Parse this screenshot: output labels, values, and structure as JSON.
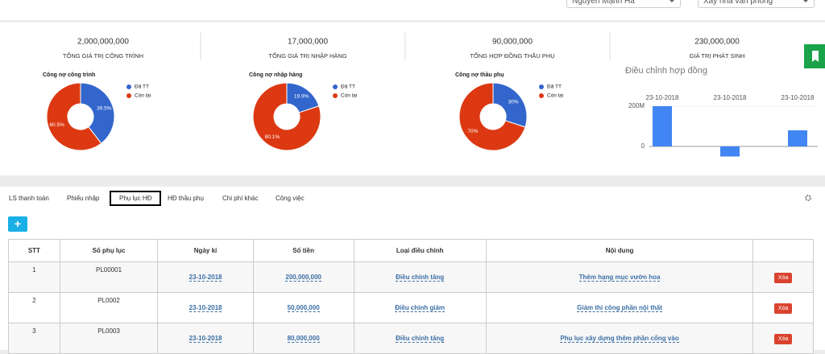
{
  "header": {
    "user_select": "Nguyễn Mạnh Hà",
    "project_select": "Xây nhà văn phòng"
  },
  "stats": [
    {
      "value": "2,000,000,000",
      "label": "TỔNG GIÁ TRỊ CÔNG TRÌNH"
    },
    {
      "value": "17,000,000",
      "label": "TỔNG GIÁ TRỊ NHẬP HÀNG"
    },
    {
      "value": "90,000,000",
      "label": "TỔNG HỢP ĐỒNG THẦU PHỤ"
    },
    {
      "value": "230,000,000",
      "label": "GIÁ TRỊ PHÁT SINH"
    }
  ],
  "chart_data": [
    {
      "type": "pie",
      "title": "Công nợ công trình",
      "categories": [
        "Đã TT",
        "Còn lại"
      ],
      "values": [
        39.5,
        60.5
      ],
      "value_labels": [
        "39.5%",
        "60.5%"
      ],
      "colors": [
        "#3366cc",
        "#dc3912"
      ]
    },
    {
      "type": "pie",
      "title": "Công nợ nhập hàng",
      "categories": [
        "Đã TT",
        "Còn lại"
      ],
      "values": [
        19.9,
        80.1
      ],
      "value_labels": [
        "19.9%",
        "80.1%"
      ],
      "colors": [
        "#3366cc",
        "#dc3912"
      ]
    },
    {
      "type": "pie",
      "title": "Công nợ thầu phụ",
      "categories": [
        "Đã TT",
        "Còn lại"
      ],
      "values": [
        30,
        70
      ],
      "value_labels": [
        "30%",
        "70%"
      ],
      "colors": [
        "#3366cc",
        "#dc3912"
      ]
    },
    {
      "type": "bar",
      "title": "Điều chỉnh hợp đồng",
      "categories": [
        "23-10-2018",
        "23-10-2018",
        "23-10-2018"
      ],
      "values": [
        200000000,
        -50000000,
        80000000
      ],
      "color": "#4285f4",
      "ylim": [
        -100000000,
        250000000
      ],
      "yticks": [
        0,
        {
          "value": 200000000,
          "label": "200M"
        }
      ]
    }
  ],
  "tabs": [
    "LS thanh toán",
    "Phiếu nhập",
    "Phụ lục HĐ",
    "HĐ thầu phụ",
    "Chi phí khác",
    "Công việc"
  ],
  "add_button": "+",
  "table": {
    "headers": [
      "STT",
      "Số phụ lục",
      "Ngày kí",
      "Số tiền",
      "Loại điều chỉnh",
      "Nội dung"
    ],
    "rows": [
      [
        "1",
        "PL00001",
        "23-10-2018",
        "200,000,000",
        "Điều chỉnh tăng",
        "Thêm hạng mục vườn hoa",
        "Xóa"
      ],
      [
        "2",
        "PL0002",
        "23-10-2018",
        "50,000,000",
        "Điều chỉnh giảm",
        "Giảm thi công phần nội thất",
        "Xóa"
      ],
      [
        "3",
        "PL0003",
        "23-10-2018",
        "80,000,000",
        "Điều chỉnh tăng",
        "Phụ lục xây dựng thêm phần cổng vào",
        "Xóa"
      ]
    ]
  }
}
